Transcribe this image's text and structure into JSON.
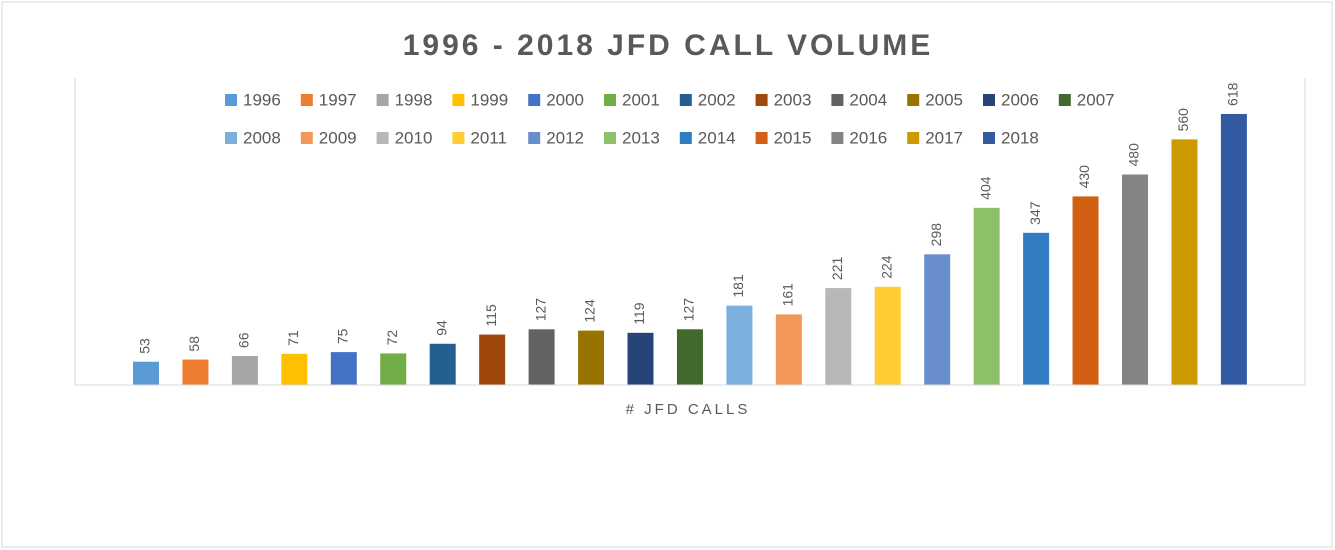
{
  "chart_data": {
    "type": "bar",
    "title": "1996 - 2018 JFD CALL VOLUME",
    "categories": [
      "# JFD CALLS"
    ],
    "ylim": [
      0,
      700
    ],
    "series": [
      {
        "name": "1996",
        "color": "#5b9bd5",
        "values": [
          53
        ]
      },
      {
        "name": "1997",
        "color": "#ed7d31",
        "values": [
          58
        ]
      },
      {
        "name": "1998",
        "color": "#a5a5a5",
        "values": [
          66
        ]
      },
      {
        "name": "1999",
        "color": "#ffc000",
        "values": [
          71
        ]
      },
      {
        "name": "2000",
        "color": "#4472c4",
        "values": [
          75
        ]
      },
      {
        "name": "2001",
        "color": "#70ad47",
        "values": [
          72
        ]
      },
      {
        "name": "2002",
        "color": "#255e91",
        "values": [
          94
        ]
      },
      {
        "name": "2003",
        "color": "#9e480e",
        "values": [
          115
        ]
      },
      {
        "name": "2004",
        "color": "#636363",
        "values": [
          127
        ]
      },
      {
        "name": "2005",
        "color": "#997300",
        "values": [
          124
        ]
      },
      {
        "name": "2006",
        "color": "#264478",
        "values": [
          119
        ]
      },
      {
        "name": "2007",
        "color": "#43682b",
        "values": [
          127
        ]
      },
      {
        "name": "2008",
        "color": "#7cafdd",
        "values": [
          181
        ]
      },
      {
        "name": "2009",
        "color": "#f1975a",
        "values": [
          161
        ]
      },
      {
        "name": "2010",
        "color": "#b7b7b7",
        "values": [
          221
        ]
      },
      {
        "name": "2011",
        "color": "#ffcd33",
        "values": [
          224
        ]
      },
      {
        "name": "2012",
        "color": "#698ed0",
        "values": [
          298
        ]
      },
      {
        "name": "2013",
        "color": "#8cc168",
        "values": [
          404
        ]
      },
      {
        "name": "2014",
        "color": "#327dc2",
        "values": [
          347
        ]
      },
      {
        "name": "2015",
        "color": "#d26012",
        "values": [
          430
        ]
      },
      {
        "name": "2016",
        "color": "#848484",
        "values": [
          480
        ]
      },
      {
        "name": "2017",
        "color": "#cc9a00",
        "values": [
          560
        ]
      },
      {
        "name": "2018",
        "color": "#335aa1",
        "values": [
          618
        ]
      }
    ]
  }
}
